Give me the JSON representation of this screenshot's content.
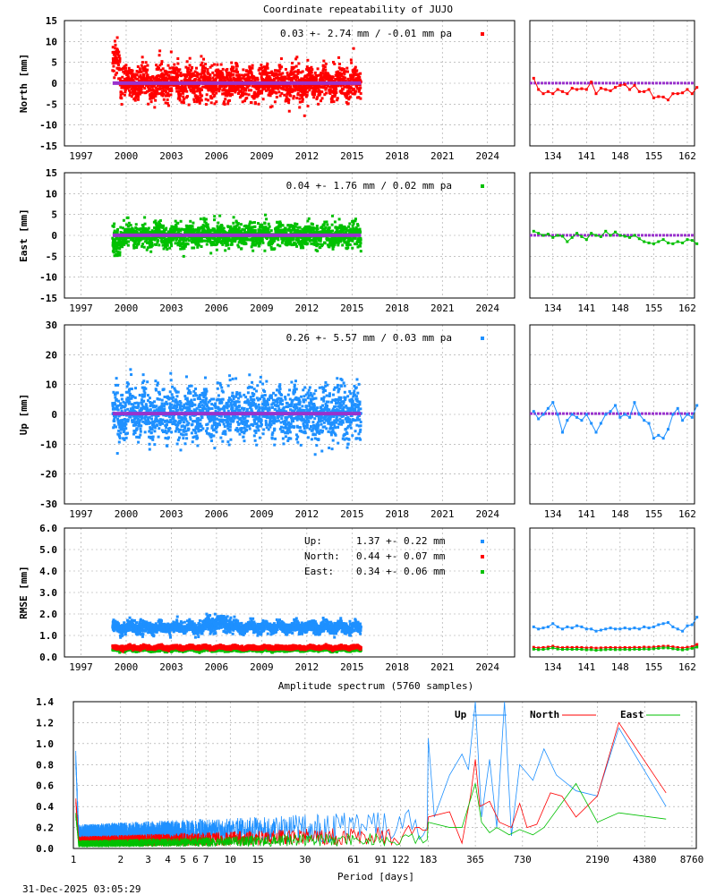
{
  "title": "Coordinate repeatability of JUJO",
  "footer_timestamp": "31-Dec-2025 03:05:29",
  "colors": {
    "north": "#ff0000",
    "east": "#00c000",
    "up": "#1e90ff",
    "mean_line": "#9932cc",
    "grid": "#a0a0a0"
  },
  "chart_data": [
    {
      "type": "scatter",
      "id": "north",
      "ylabel": "North [mm]",
      "ylim": [
        -15,
        15
      ],
      "yticks": [
        "15",
        "10",
        "5",
        "0",
        "-5",
        "-10",
        "-15"
      ],
      "xticks": [
        "1997",
        "2000",
        "2003",
        "2006",
        "2009",
        "2012",
        "2015",
        "2018",
        "2021",
        "2024"
      ],
      "xlim": [
        1995.9,
        2025.8
      ],
      "data_span": [
        1999.1,
        2015.6
      ],
      "legend": "0.03 +- 2.74 mm / -0.01 mm pa",
      "mean": 0.03,
      "std": 2.74,
      "trend": -0.01,
      "grid": true,
      "detail": {
        "xlim": [
          129.2,
          163.5
        ],
        "xticks": [
          "134",
          "141",
          "148",
          "155",
          "162"
        ],
        "days_start": 130,
        "values": [
          1.2,
          -1.5,
          -2.5,
          -2,
          -2.5,
          -1.5,
          -2,
          -2.5,
          -1.2,
          -1.5,
          -1.3,
          -1.5,
          0.3,
          -2.5,
          -1.2,
          -1.5,
          -1.8,
          -1,
          -0.5,
          -0.3,
          -1.5,
          -0.5,
          -2,
          -2,
          -1.5,
          -3.5,
          -3.2,
          -3.3,
          -4,
          -2.5,
          -2.5,
          -2.3,
          -1.5,
          -2.5,
          -1
        ]
      }
    },
    {
      "type": "scatter",
      "id": "east",
      "ylabel": "East [mm]",
      "ylim": [
        -15,
        15
      ],
      "yticks": [
        "15",
        "10",
        "5",
        "0",
        "-5",
        "-10",
        "-15"
      ],
      "xticks": [
        "1997",
        "2000",
        "2003",
        "2006",
        "2009",
        "2012",
        "2015",
        "2018",
        "2021",
        "2024"
      ],
      "xlim": [
        1995.9,
        2025.8
      ],
      "data_span": [
        1999.1,
        2015.6
      ],
      "legend": "0.04 +- 1.76 mm /  0.02 mm pa",
      "mean": 0.04,
      "std": 1.76,
      "trend": 0.02,
      "grid": true,
      "detail": {
        "xlim": [
          129.2,
          163.5
        ],
        "xticks": [
          "134",
          "141",
          "148",
          "155",
          "162"
        ],
        "days_start": 130,
        "values": [
          1,
          0.5,
          0,
          0.3,
          -0.5,
          0,
          -0.2,
          -1.5,
          -0.5,
          0.5,
          -0.3,
          -1,
          0.5,
          0,
          -0.3,
          1,
          0,
          0.8,
          0,
          -0.2,
          -0.5,
          0,
          -0.8,
          -1.5,
          -1.8,
          -2,
          -1.5,
          -1,
          -1.8,
          -2,
          -1.5,
          -1.8,
          -1,
          -1.2,
          -2
        ]
      }
    },
    {
      "type": "scatter",
      "id": "up",
      "ylabel": "Up [mm]",
      "ylim": [
        -30,
        30
      ],
      "yticks": [
        "30",
        "20",
        "10",
        "0",
        "-10",
        "-20",
        "-30"
      ],
      "xticks": [
        "1997",
        "2000",
        "2003",
        "2006",
        "2009",
        "2012",
        "2015",
        "2018",
        "2021",
        "2024"
      ],
      "xlim": [
        1995.9,
        2025.8
      ],
      "data_span": [
        1999.1,
        2015.6
      ],
      "legend": "0.26 +- 5.57 mm /  0.03 mm pa",
      "mean": 0.26,
      "std": 5.57,
      "trend": 0.03,
      "grid": true,
      "detail": {
        "xlim": [
          129.2,
          163.5
        ],
        "xticks": [
          "134",
          "141",
          "148",
          "155",
          "162"
        ],
        "days_start": 130,
        "values": [
          1,
          -1.5,
          0,
          2,
          4,
          0,
          -6,
          -2,
          0,
          -1,
          -2,
          0,
          -3,
          -6,
          -3,
          0,
          1,
          3,
          -1,
          0,
          -1,
          4,
          0,
          -2,
          -3,
          -8,
          -7,
          -8,
          -5,
          0,
          2,
          -2,
          0,
          -1,
          3
        ]
      }
    },
    {
      "type": "scatter",
      "id": "rmse",
      "ylabel": "RMSE [mm]",
      "ylim": [
        0,
        6
      ],
      "yticks": [
        "6.0",
        "5.0",
        "4.0",
        "3.0",
        "2.0",
        "1.0",
        "0.0"
      ],
      "xticks": [
        "1997",
        "2000",
        "2003",
        "2006",
        "2009",
        "2012",
        "2015",
        "2018",
        "2021",
        "2024"
      ],
      "xlim": [
        1995.9,
        2025.8
      ],
      "data_span": [
        1999.1,
        2015.6
      ],
      "grid": true,
      "series": [
        {
          "name": "Up:",
          "stat": "1.37 +- 0.22 mm",
          "mean": 1.37,
          "std": 0.22,
          "color_key": "up"
        },
        {
          "name": "North:",
          "stat": "0.44 +- 0.07 mm",
          "mean": 0.44,
          "std": 0.07,
          "color_key": "north"
        },
        {
          "name": "East:",
          "stat": "0.34 +- 0.06 mm",
          "mean": 0.34,
          "std": 0.06,
          "color_key": "east"
        }
      ],
      "detail": {
        "xlim": [
          129.2,
          163.5
        ],
        "xticks": [
          "134",
          "141",
          "148",
          "155",
          "162"
        ],
        "days_start": 130,
        "up": [
          1.4,
          1.3,
          1.35,
          1.4,
          1.55,
          1.4,
          1.3,
          1.4,
          1.35,
          1.45,
          1.4,
          1.3,
          1.3,
          1.2,
          1.25,
          1.3,
          1.35,
          1.3,
          1.3,
          1.35,
          1.3,
          1.35,
          1.3,
          1.4,
          1.35,
          1.4,
          1.5,
          1.55,
          1.6,
          1.4,
          1.3,
          1.2,
          1.45,
          1.5,
          1.85
        ],
        "north": [
          0.45,
          0.42,
          0.44,
          0.46,
          0.5,
          0.45,
          0.43,
          0.45,
          0.44,
          0.45,
          0.44,
          0.42,
          0.43,
          0.41,
          0.42,
          0.43,
          0.44,
          0.43,
          0.43,
          0.44,
          0.43,
          0.45,
          0.44,
          0.46,
          0.45,
          0.46,
          0.48,
          0.5,
          0.5,
          0.47,
          0.44,
          0.42,
          0.45,
          0.48,
          0.58
        ],
        "east": [
          0.36,
          0.34,
          0.35,
          0.38,
          0.42,
          0.37,
          0.35,
          0.36,
          0.35,
          0.36,
          0.35,
          0.33,
          0.34,
          0.31,
          0.33,
          0.34,
          0.35,
          0.34,
          0.34,
          0.35,
          0.34,
          0.36,
          0.35,
          0.37,
          0.36,
          0.38,
          0.4,
          0.42,
          0.42,
          0.38,
          0.35,
          0.33,
          0.36,
          0.4,
          0.46
        ]
      }
    },
    {
      "type": "line",
      "id": "spectrum",
      "title": "Amplitude spectrum (5760 samples)",
      "xlabel": "Period [days]",
      "xscale": "log",
      "xlim": [
        1,
        8760
      ],
      "ylim": [
        0,
        1.4
      ],
      "xticks": [
        "1",
        "2",
        "3",
        "4",
        "5",
        "6",
        "7",
        "10",
        "15",
        "30",
        "61",
        "91",
        "122",
        "183",
        "365",
        "730",
        "2190",
        "4380",
        "8760"
      ],
      "yticks": [
        "1.4",
        "1.2",
        "1.0",
        "0.8",
        "0.6",
        "0.4",
        "0.2",
        "0.0"
      ],
      "legend_placement": "top-right",
      "grid": true,
      "series": [
        {
          "name": "Up",
          "color_key": "up",
          "long_period": [
            [
              183,
              1.05
            ],
            [
              200,
              0.3
            ],
            [
              250,
              0.7
            ],
            [
              300,
              0.9
            ],
            [
              330,
              0.75
            ],
            [
              365,
              1.4
            ],
            [
              400,
              0.3
            ],
            [
              450,
              0.85
            ],
            [
              500,
              0.2
            ],
            [
              560,
              1.4
            ],
            [
              620,
              0.12
            ],
            [
              700,
              0.8
            ],
            [
              850,
              0.65
            ],
            [
              1000,
              0.95
            ],
            [
              1200,
              0.7
            ],
            [
              1600,
              0.55
            ],
            [
              2190,
              0.5
            ],
            [
              3000,
              1.15
            ],
            [
              6000,
              0.4
            ]
          ]
        },
        {
          "name": "North",
          "color_key": "north",
          "long_period": [
            [
              183,
              0.3
            ],
            [
              250,
              0.35
            ],
            [
              300,
              0.05
            ],
            [
              340,
              0.5
            ],
            [
              365,
              0.85
            ],
            [
              390,
              0.4
            ],
            [
              450,
              0.45
            ],
            [
              520,
              0.25
            ],
            [
              620,
              0.2
            ],
            [
              700,
              0.43
            ],
            [
              780,
              0.2
            ],
            [
              900,
              0.23
            ],
            [
              1100,
              0.53
            ],
            [
              1300,
              0.5
            ],
            [
              1600,
              0.3
            ],
            [
              2190,
              0.5
            ],
            [
              3000,
              1.2
            ],
            [
              6000,
              0.53
            ]
          ]
        },
        {
          "name": "East",
          "color_key": "east",
          "long_period": [
            [
              183,
              0.25
            ],
            [
              250,
              0.2
            ],
            [
              300,
              0.2
            ],
            [
              365,
              0.62
            ],
            [
              400,
              0.25
            ],
            [
              450,
              0.15
            ],
            [
              500,
              0.2
            ],
            [
              600,
              0.13
            ],
            [
              700,
              0.18
            ],
            [
              850,
              0.13
            ],
            [
              1000,
              0.2
            ],
            [
              1600,
              0.62
            ],
            [
              2190,
              0.25
            ],
            [
              3000,
              0.34
            ],
            [
              6000,
              0.28
            ]
          ]
        }
      ]
    }
  ]
}
